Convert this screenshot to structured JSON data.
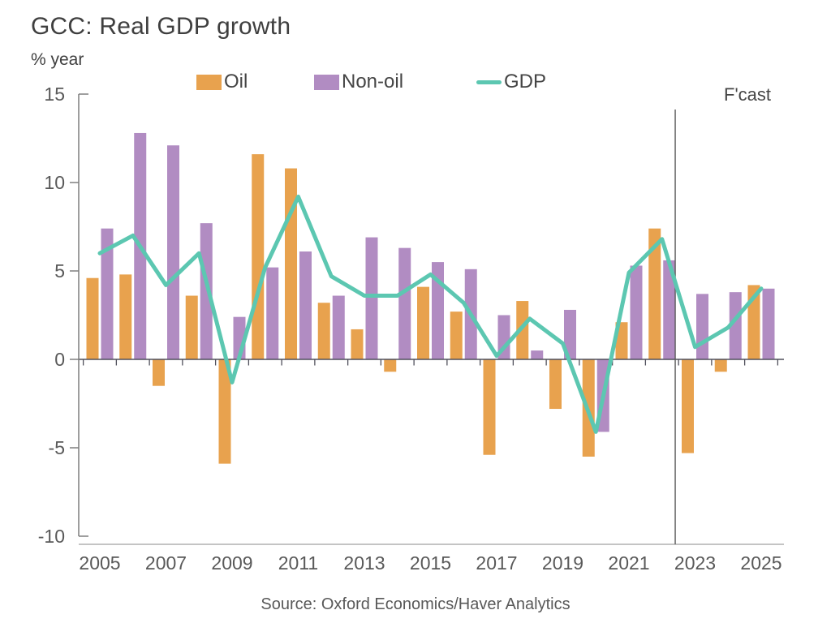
{
  "chart_data": {
    "type": "bar+line",
    "title": "GCC: Real GDP growth",
    "ylabel": "% year",
    "source": "Source: Oxford Economics/Haver Analytics",
    "years": [
      2005,
      2006,
      2007,
      2008,
      2009,
      2010,
      2011,
      2012,
      2013,
      2014,
      2015,
      2016,
      2017,
      2018,
      2019,
      2020,
      2021,
      2022,
      2023,
      2024,
      2025
    ],
    "x_tick_labels": [
      "2005",
      "2007",
      "2009",
      "2011",
      "2013",
      "2015",
      "2017",
      "2019",
      "2021",
      "2023",
      "2025"
    ],
    "y_ticks": [
      15,
      10,
      5,
      0,
      -5,
      -10
    ],
    "ylim": [
      -10,
      15
    ],
    "grid": false,
    "legend_position": "top",
    "series": [
      {
        "name": "Oil",
        "type": "bar",
        "color": "#E8A24E",
        "values": [
          4.6,
          4.8,
          -1.5,
          3.6,
          -5.9,
          11.6,
          10.8,
          3.2,
          1.7,
          -0.7,
          4.1,
          2.7,
          -5.4,
          3.3,
          -2.8,
          -5.5,
          2.1,
          7.4,
          -5.3,
          -0.7,
          4.2
        ]
      },
      {
        "name": "Non-oil",
        "type": "bar",
        "color": "#B18CC2",
        "values": [
          7.4,
          12.8,
          12.1,
          7.7,
          2.4,
          5.2,
          6.1,
          3.6,
          6.9,
          6.3,
          5.5,
          5.1,
          2.5,
          0.5,
          2.8,
          -4.1,
          5.3,
          5.6,
          3.7,
          3.8,
          4.0
        ]
      },
      {
        "name": "GDP",
        "type": "line",
        "color": "#5CC7B1",
        "values": [
          6.0,
          7.0,
          4.2,
          6.0,
          -1.3,
          5.2,
          9.2,
          4.7,
          3.6,
          3.6,
          4.8,
          3.2,
          0.2,
          2.3,
          0.9,
          -4.1,
          4.9,
          6.8,
          0.7,
          1.8,
          4.0
        ]
      }
    ],
    "forecast": {
      "label": "F'cast",
      "line_after_year_index": 17.4
    },
    "colors": {
      "title_text": "#3f3f3f",
      "tick_text": "#595959",
      "axis": "#7f7f7f",
      "zero_line": "#50505c",
      "forecast_line": "#595959"
    }
  }
}
